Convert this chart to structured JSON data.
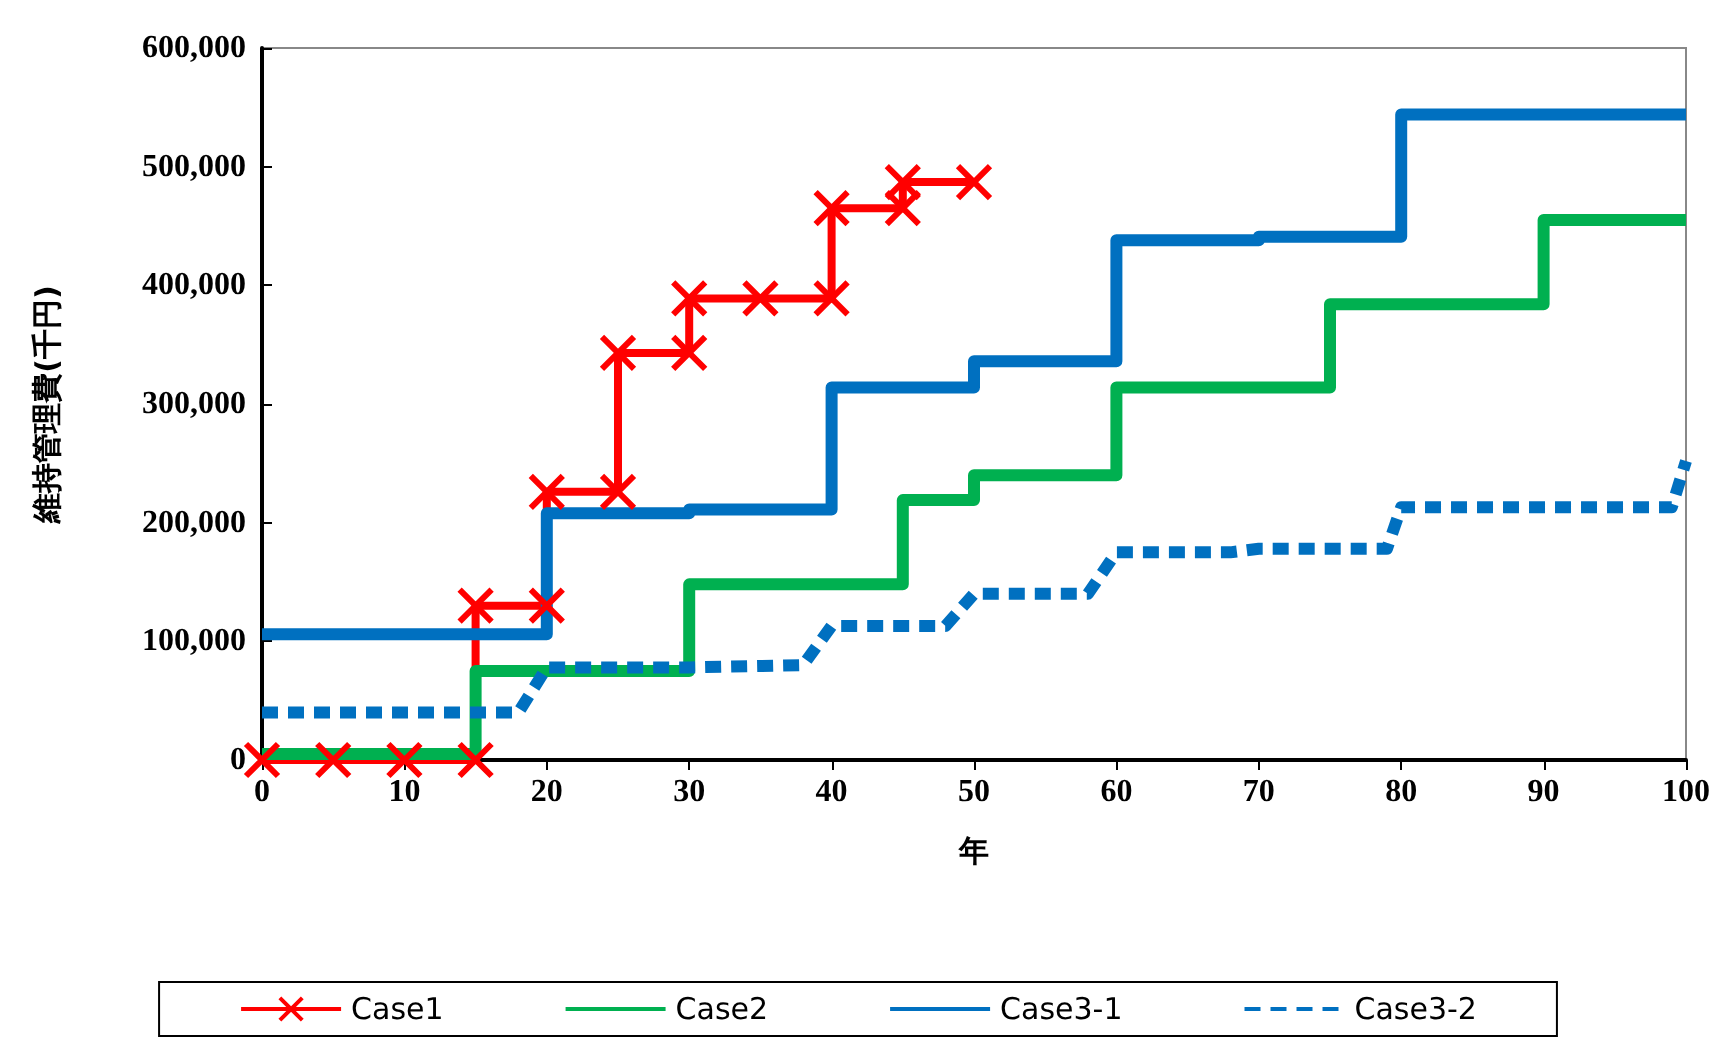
{
  "chart_data": {
    "type": "line",
    "xlabel": "年",
    "ylabel": "維持管理費(千円)",
    "xlim": [
      0,
      100
    ],
    "xticks": [
      0,
      10,
      20,
      30,
      40,
      50,
      60,
      70,
      80,
      90,
      100
    ],
    "ylim": [
      0,
      600000
    ],
    "yticks": [
      {
        "value": 0,
        "label": "0"
      },
      {
        "value": 100000,
        "label": "100,000"
      },
      {
        "value": 200000,
        "label": "200,000"
      },
      {
        "value": 300000,
        "label": "300,000"
      },
      {
        "value": 400000,
        "label": "400,000"
      },
      {
        "value": 500000,
        "label": "500,000"
      },
      {
        "value": 600000,
        "label": "600,000"
      }
    ],
    "grid": false,
    "legend": "bottom",
    "series": [
      {
        "name": "Case1",
        "color": "#ff0000",
        "marker": "cross",
        "line_style": "solid",
        "x": [
          0,
          5,
          10,
          15,
          15,
          20,
          20,
          25,
          25,
          30,
          30,
          35,
          40,
          40,
          45,
          45,
          50
        ],
        "values": [
          0,
          0,
          0,
          0,
          130000,
          130000,
          226000,
          226000,
          343000,
          343000,
          389000,
          389000,
          389000,
          465000,
          465000,
          487000,
          487000
        ]
      },
      {
        "name": "Case2",
        "type": "step",
        "color": "#00b050",
        "marker": "none",
        "line_style": "solid",
        "x": [
          0,
          15,
          30,
          45,
          50,
          60,
          75,
          90,
          100
        ],
        "values": [
          5000,
          75000,
          148000,
          219000,
          240000,
          314000,
          384000,
          455000,
          455000
        ]
      },
      {
        "name": "Case3-1",
        "type": "step",
        "color": "#0070c0",
        "marker": "none",
        "line_style": "solid",
        "x": [
          0,
          20,
          30,
          40,
          50,
          60,
          70,
          80,
          100
        ],
        "values": [
          106000,
          208000,
          211000,
          314000,
          336000,
          438000,
          441000,
          544000,
          544000
        ]
      },
      {
        "name": "Case3-2",
        "color": "#0070c0",
        "marker": "none",
        "line_style": "dashed",
        "x": [
          0,
          18,
          20,
          30,
          38,
          40,
          48,
          50,
          58,
          60,
          68,
          70,
          79,
          80,
          99,
          100
        ],
        "values": [
          40000,
          40000,
          78000,
          78000,
          80000,
          113000,
          113000,
          140000,
          140000,
          175000,
          175000,
          178000,
          178000,
          213000,
          213000,
          252000
        ]
      }
    ]
  }
}
